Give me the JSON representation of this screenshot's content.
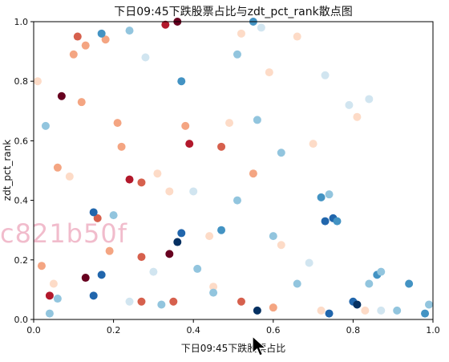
{
  "chart_data": {
    "type": "scatter",
    "title": "下日09:45下跌股票占比与zdt_pct_rank散点图",
    "xlabel": "下日09:45下跌股票占比",
    "ylabel": "zdt_pct_rank",
    "xlim": [
      0.0,
      1.0
    ],
    "ylim": [
      0.0,
      1.0
    ],
    "x_ticks": [
      "0.0",
      "0.2",
      "0.4",
      "0.6",
      "0.8",
      "1.0"
    ],
    "y_ticks": [
      "0.0",
      "0.2",
      "0.4",
      "0.6",
      "0.8",
      "1.0"
    ],
    "grid": false,
    "colormap": "RdBu",
    "points": [
      {
        "x": 0.07,
        "y": 0.75,
        "c": "#67001f"
      },
      {
        "x": 0.36,
        "y": 1.0,
        "c": "#67001f"
      },
      {
        "x": 0.33,
        "y": 0.99,
        "c": "#b2182b"
      },
      {
        "x": 0.39,
        "y": 0.59,
        "c": "#b2182b"
      },
      {
        "x": 0.24,
        "y": 0.47,
        "c": "#b2182b"
      },
      {
        "x": 0.34,
        "y": 0.22,
        "c": "#67001f"
      },
      {
        "x": 0.13,
        "y": 0.14,
        "c": "#67001f"
      },
      {
        "x": 0.04,
        "y": 0.08,
        "c": "#b2182b"
      },
      {
        "x": 0.11,
        "y": 0.95,
        "c": "#d6604d"
      },
      {
        "x": 0.47,
        "y": 0.58,
        "c": "#d6604d"
      },
      {
        "x": 0.27,
        "y": 0.46,
        "c": "#d6604d"
      },
      {
        "x": 0.27,
        "y": 0.21,
        "c": "#d6604d"
      },
      {
        "x": 0.16,
        "y": 0.34,
        "c": "#d6604d"
      },
      {
        "x": 0.35,
        "y": 0.06,
        "c": "#d6604d"
      },
      {
        "x": 0.27,
        "y": 0.06,
        "c": "#d6604d"
      },
      {
        "x": 0.52,
        "y": 0.06,
        "c": "#d6604d"
      },
      {
        "x": 0.13,
        "y": 0.92,
        "c": "#f4a582"
      },
      {
        "x": 0.1,
        "y": 0.89,
        "c": "#f4a582"
      },
      {
        "x": 0.12,
        "y": 0.73,
        "c": "#f4a582"
      },
      {
        "x": 0.18,
        "y": 0.94,
        "c": "#f4a582"
      },
      {
        "x": 0.21,
        "y": 0.66,
        "c": "#f4a582"
      },
      {
        "x": 0.22,
        "y": 0.58,
        "c": "#f4a582"
      },
      {
        "x": 0.01,
        "y": 0.8,
        "c": "#fddbc7"
      },
      {
        "x": 0.06,
        "y": 0.51,
        "c": "#f4a582"
      },
      {
        "x": 0.09,
        "y": 0.48,
        "c": "#fddbc7"
      },
      {
        "x": 0.38,
        "y": 0.65,
        "c": "#f4a582"
      },
      {
        "x": 0.49,
        "y": 0.66,
        "c": "#fddbc7"
      },
      {
        "x": 0.66,
        "y": 0.95,
        "c": "#fddbc7"
      },
      {
        "x": 0.52,
        "y": 0.96,
        "c": "#fddbc7"
      },
      {
        "x": 0.59,
        "y": 0.83,
        "c": "#fddbc7"
      },
      {
        "x": 0.55,
        "y": 0.49,
        "c": "#f4a582"
      },
      {
        "x": 0.02,
        "y": 0.18,
        "c": "#f4a582"
      },
      {
        "x": 0.05,
        "y": 0.12,
        "c": "#fddbc7"
      },
      {
        "x": 0.19,
        "y": 0.23,
        "c": "#f4a582"
      },
      {
        "x": 0.31,
        "y": 0.49,
        "c": "#fddbc7"
      },
      {
        "x": 0.44,
        "y": 0.28,
        "c": "#fddbc7"
      },
      {
        "x": 0.34,
        "y": 0.43,
        "c": "#fddbc7"
      },
      {
        "x": 0.45,
        "y": 0.11,
        "c": "#fddbc7"
      },
      {
        "x": 0.62,
        "y": 0.25,
        "c": "#fddbc7"
      },
      {
        "x": 0.7,
        "y": 0.59,
        "c": "#fddbc7"
      },
      {
        "x": 0.81,
        "y": 0.68,
        "c": "#fddbc7"
      },
      {
        "x": 0.6,
        "y": 0.04,
        "c": "#f4a582"
      },
      {
        "x": 0.72,
        "y": 0.03,
        "c": "#fddbc7"
      },
      {
        "x": 0.83,
        "y": 0.03,
        "c": "#fddbc7"
      },
      {
        "x": 0.17,
        "y": 0.96,
        "c": "#4393c3"
      },
      {
        "x": 0.24,
        "y": 0.97,
        "c": "#92c5de"
      },
      {
        "x": 0.55,
        "y": 1.0,
        "c": "#4393c3"
      },
      {
        "x": 0.57,
        "y": 0.98,
        "c": "#d1e5f0"
      },
      {
        "x": 0.51,
        "y": 0.89,
        "c": "#92c5de"
      },
      {
        "x": 0.37,
        "y": 0.8,
        "c": "#4393c3"
      },
      {
        "x": 0.03,
        "y": 0.65,
        "c": "#92c5de"
      },
      {
        "x": 0.56,
        "y": 0.67,
        "c": "#92c5de"
      },
      {
        "x": 0.73,
        "y": 0.82,
        "c": "#d1e5f0"
      },
      {
        "x": 0.79,
        "y": 0.72,
        "c": "#d1e5f0"
      },
      {
        "x": 0.84,
        "y": 0.74,
        "c": "#d1e5f0"
      },
      {
        "x": 0.62,
        "y": 0.56,
        "c": "#92c5de"
      },
      {
        "x": 0.51,
        "y": 0.4,
        "c": "#92c5de"
      },
      {
        "x": 0.4,
        "y": 0.43,
        "c": "#d1e5f0"
      },
      {
        "x": 0.47,
        "y": 0.3,
        "c": "#4393c3"
      },
      {
        "x": 0.17,
        "y": 0.15,
        "c": "#2166ac"
      },
      {
        "x": 0.15,
        "y": 0.36,
        "c": "#2166ac"
      },
      {
        "x": 0.2,
        "y": 0.35,
        "c": "#92c5de"
      },
      {
        "x": 0.06,
        "y": 0.07,
        "c": "#92c5de"
      },
      {
        "x": 0.04,
        "y": 0.02,
        "c": "#92c5de"
      },
      {
        "x": 0.15,
        "y": 0.08,
        "c": "#2166ac"
      },
      {
        "x": 0.36,
        "y": 0.26,
        "c": "#053061"
      },
      {
        "x": 0.37,
        "y": 0.29,
        "c": "#2166ac"
      },
      {
        "x": 0.41,
        "y": 0.17,
        "c": "#92c5de"
      },
      {
        "x": 0.56,
        "y": 0.03,
        "c": "#053061"
      },
      {
        "x": 0.6,
        "y": 0.28,
        "c": "#92c5de"
      },
      {
        "x": 0.66,
        "y": 0.12,
        "c": "#92c5de"
      },
      {
        "x": 0.73,
        "y": 0.33,
        "c": "#2166ac"
      },
      {
        "x": 0.75,
        "y": 0.34,
        "c": "#2166ac"
      },
      {
        "x": 0.72,
        "y": 0.41,
        "c": "#4393c3"
      },
      {
        "x": 0.74,
        "y": 0.42,
        "c": "#92c5de"
      },
      {
        "x": 0.76,
        "y": 0.33,
        "c": "#4393c3"
      },
      {
        "x": 0.8,
        "y": 0.06,
        "c": "#2166ac"
      },
      {
        "x": 0.81,
        "y": 0.05,
        "c": "#053061"
      },
      {
        "x": 0.74,
        "y": 0.02,
        "c": "#2166ac"
      },
      {
        "x": 0.84,
        "y": 0.12,
        "c": "#92c5de"
      },
      {
        "x": 0.86,
        "y": 0.15,
        "c": "#4393c3"
      },
      {
        "x": 0.87,
        "y": 0.16,
        "c": "#92c5de"
      },
      {
        "x": 0.94,
        "y": 0.12,
        "c": "#4393c3"
      },
      {
        "x": 0.91,
        "y": 0.03,
        "c": "#92c5de"
      },
      {
        "x": 0.98,
        "y": 0.02,
        "c": "#4393c3"
      },
      {
        "x": 0.99,
        "y": 0.05,
        "c": "#92c5de"
      },
      {
        "x": 0.87,
        "y": 0.03,
        "c": "#d1e5f0"
      },
      {
        "x": 0.3,
        "y": 0.16,
        "c": "#d1e5f0"
      },
      {
        "x": 0.32,
        "y": 0.05,
        "c": "#92c5de"
      },
      {
        "x": 0.24,
        "y": 0.06,
        "c": "#d1e5f0"
      },
      {
        "x": 0.69,
        "y": 0.19,
        "c": "#d1e5f0"
      },
      {
        "x": 0.28,
        "y": 0.88,
        "c": "#d1e5f0"
      },
      {
        "x": 0.45,
        "y": 0.09,
        "c": "#92c5de"
      }
    ]
  },
  "overlay": {
    "watermark": "c821b50f"
  }
}
